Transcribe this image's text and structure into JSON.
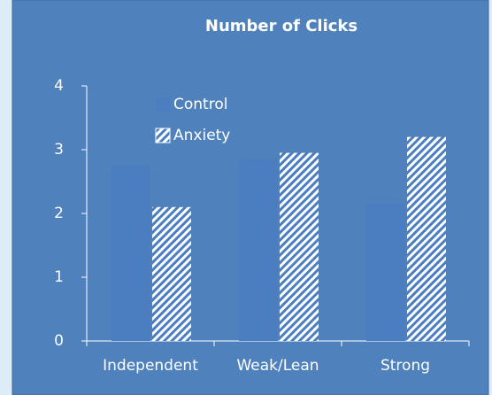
{
  "chart_data": {
    "type": "bar",
    "title": "Number of Clicks",
    "categories": [
      "Independent",
      "Weak/Lean",
      "Strong"
    ],
    "series": [
      {
        "name": "Control",
        "color": "#4a7ec0",
        "values": [
          2.75,
          2.85,
          2.15
        ]
      },
      {
        "name": "Anxiety",
        "color": "#4a7ec0",
        "hatch": true,
        "values": [
          2.1,
          2.95,
          3.2
        ]
      }
    ],
    "ylim": [
      0,
      4
    ],
    "yticks": [
      0,
      1,
      2,
      3,
      4
    ],
    "grid": false
  }
}
